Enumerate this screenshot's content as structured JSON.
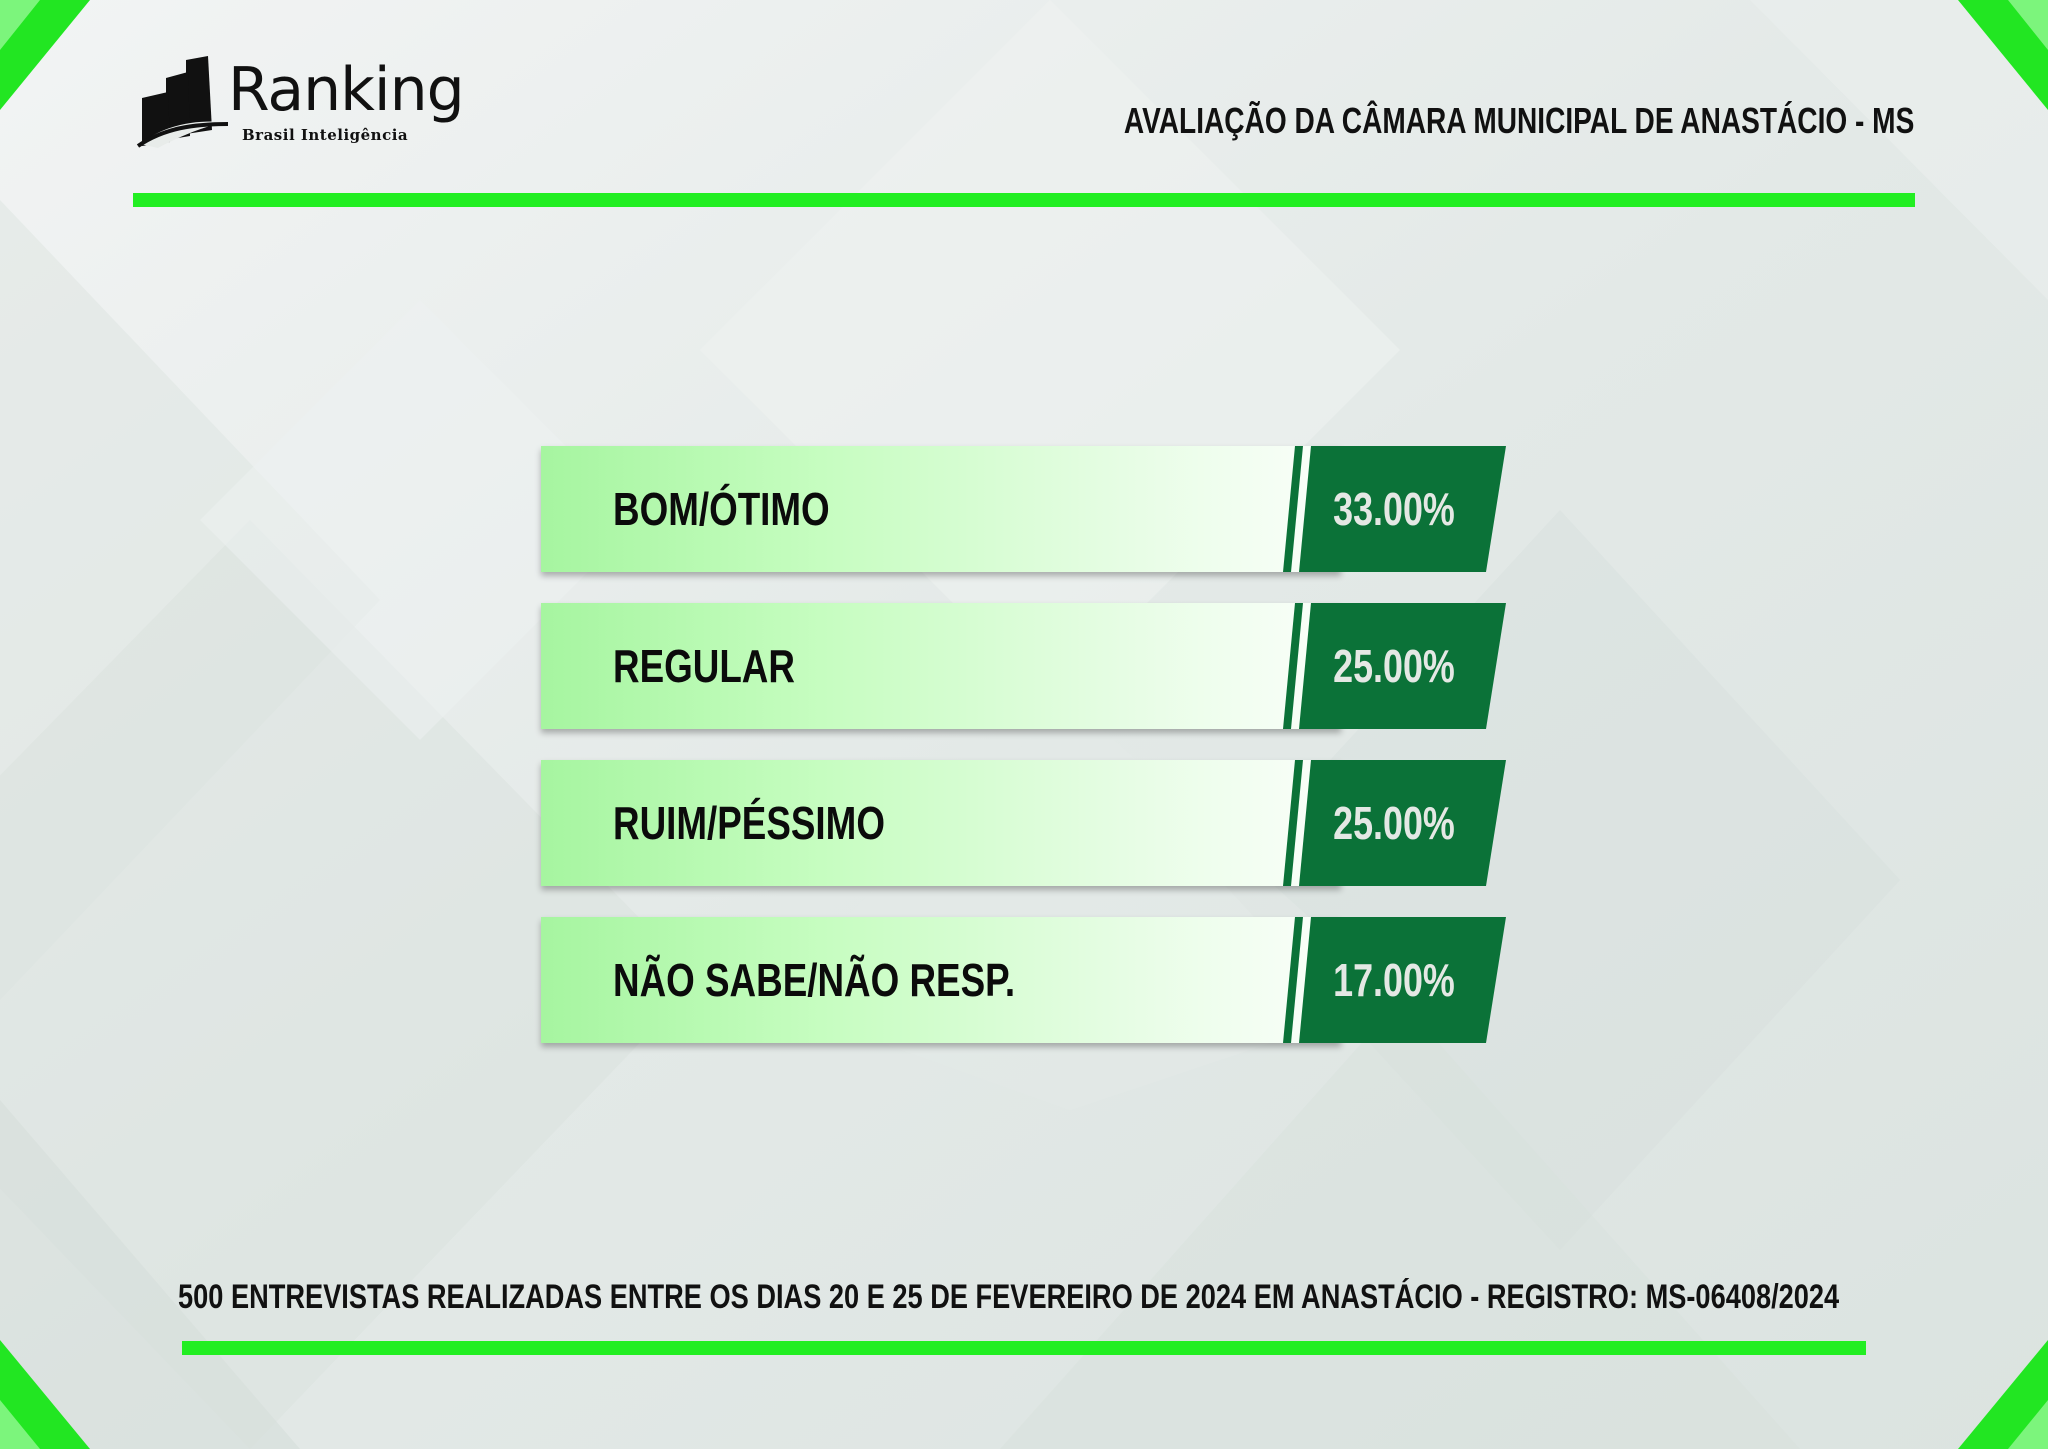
{
  "header": {
    "logo_name": "Ranking",
    "logo_subtitle": "Brasil Inteligência",
    "title": "AVALIAÇÃO DA CÂMARA MUNICIPAL DE ANASTÁCIO - MS"
  },
  "colors": {
    "accent_green": "#22ee22",
    "value_panel_green": "#0b7238",
    "bar_light_start": "#a6f5a0",
    "bar_light_end": "#fbfffb"
  },
  "chart_data": {
    "type": "bar",
    "orientation": "horizontal",
    "categories": [
      "BOM/ÓTIMO",
      "REGULAR",
      "RUIM/PÉSSIMO",
      "NÃO SABE/NÃO RESP."
    ],
    "values": [
      33.0,
      25.0,
      25.0,
      17.0
    ],
    "value_labels": [
      "33.00%",
      "25.00%",
      "25.00%",
      "17.00%"
    ],
    "unit": "%"
  },
  "footer": {
    "note": "500 ENTREVISTAS REALIZADAS ENTRE OS DIAS 20 E 25 DE FEVEREIRO DE 2024 EM ANASTÁCIO - REGISTRO: MS-06408/2024"
  }
}
